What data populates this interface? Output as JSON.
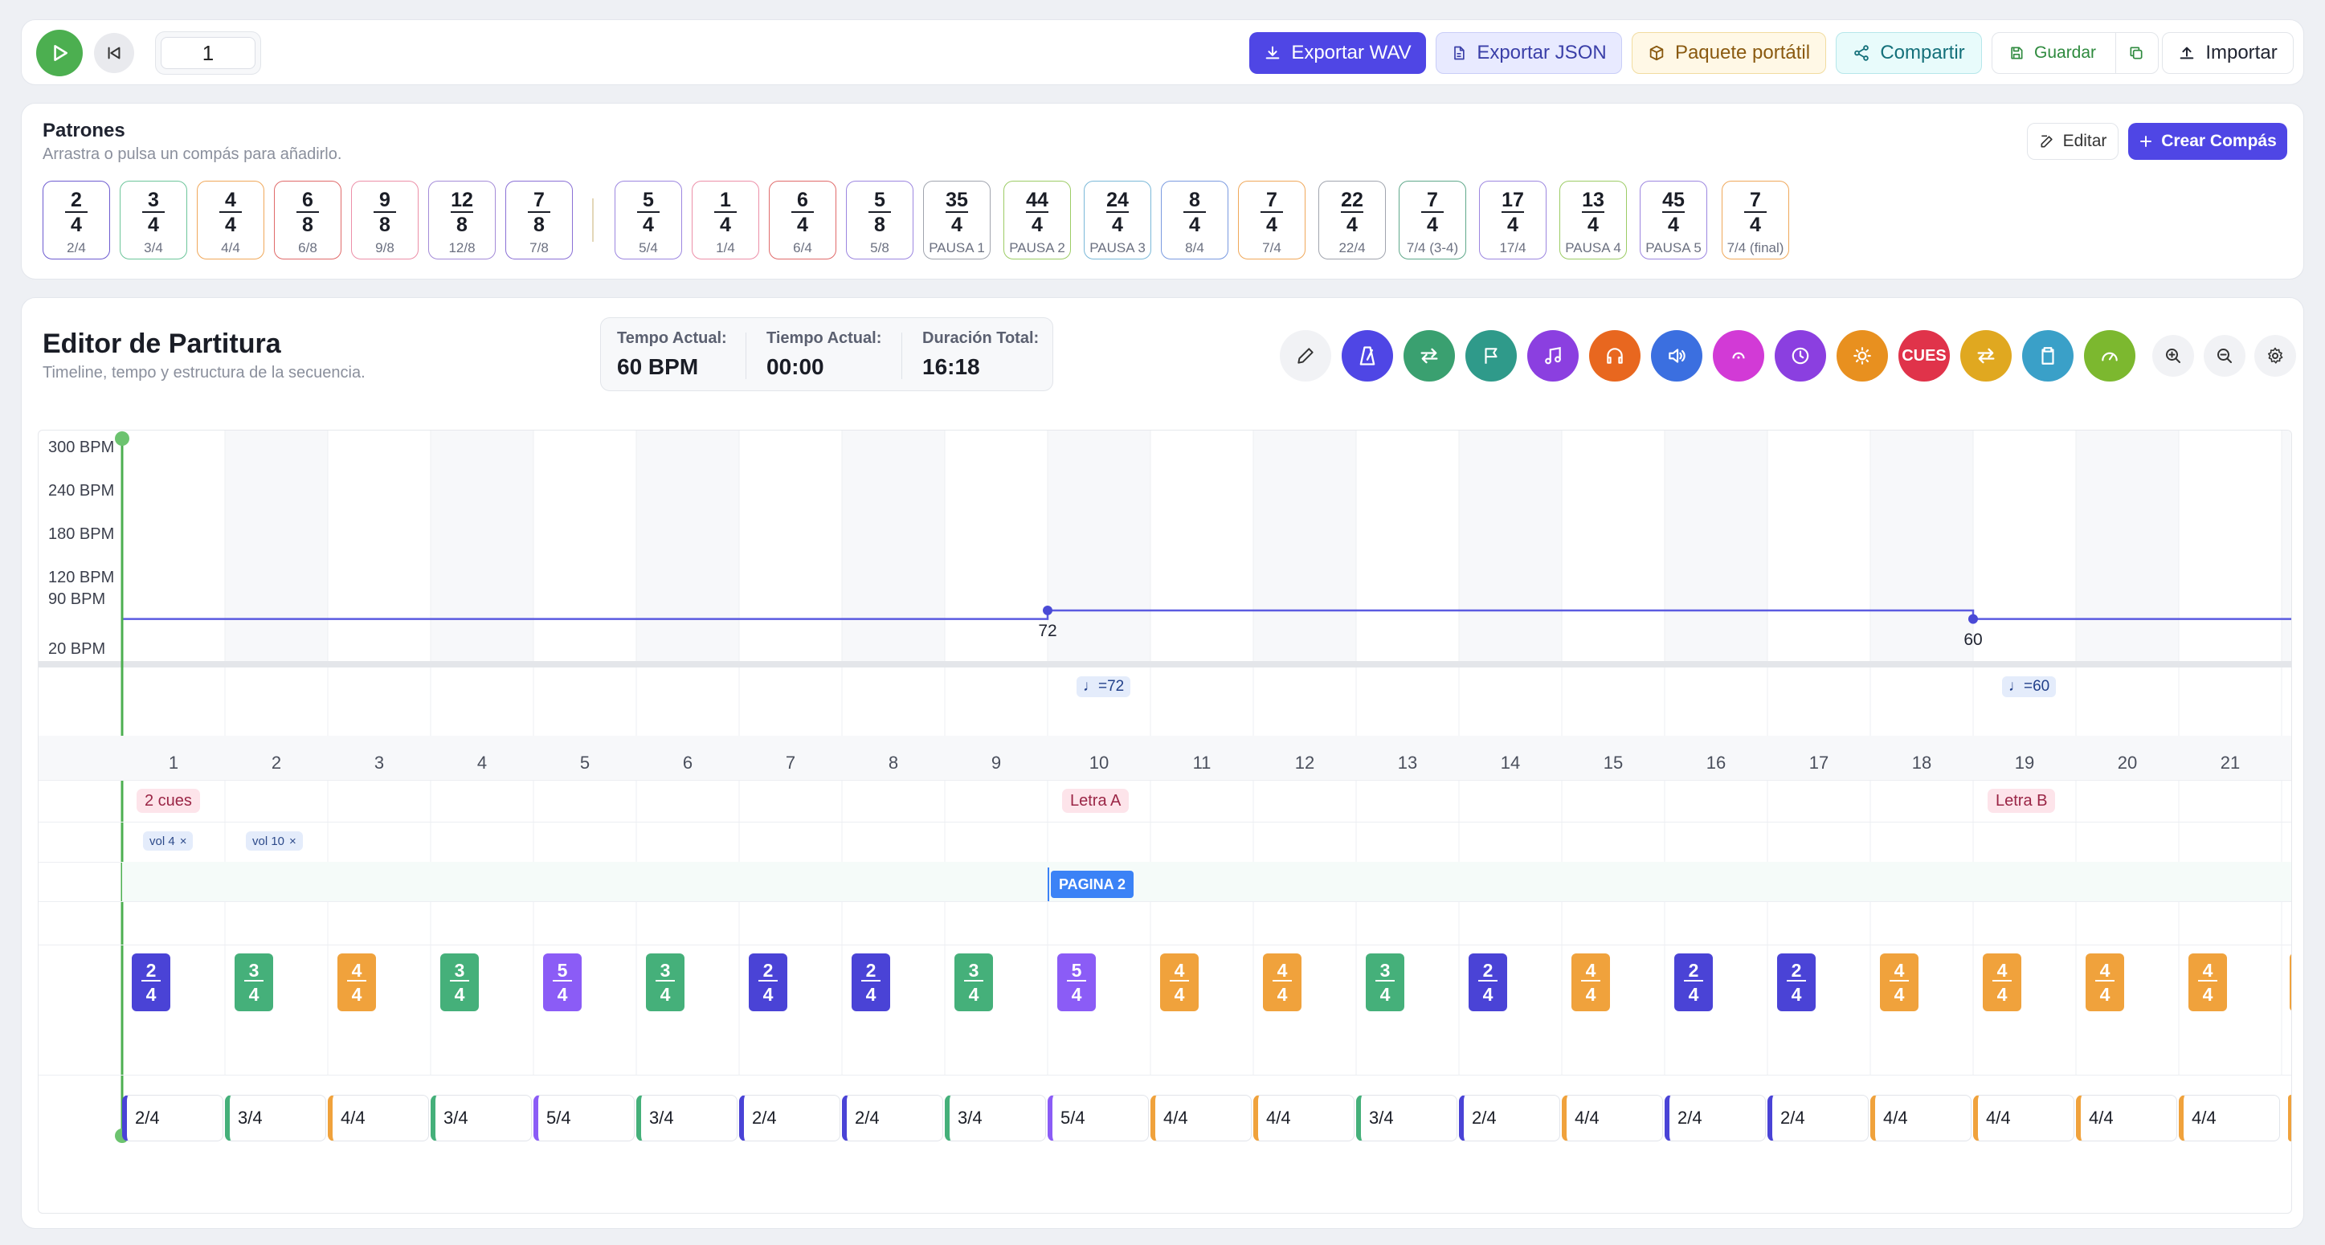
{
  "toolbar": {
    "bar_value": "1",
    "export_wav": "Exportar WAV",
    "export_json": "Exportar JSON",
    "portable": "Paquete portátil",
    "share": "Compartir",
    "save": "Guardar",
    "import": "Importar"
  },
  "patterns": {
    "title": "Patrones",
    "subtitle": "Arrastra o pulsa un compás para añadirlo.",
    "edit": "Editar",
    "create": "Crear Compás",
    "items": [
      {
        "num": "2",
        "den": "4",
        "label": "2/4",
        "color": "#6d5bd0"
      },
      {
        "num": "3",
        "den": "4",
        "label": "3/4",
        "color": "#6cc59a"
      },
      {
        "num": "4",
        "den": "4",
        "label": "4/4",
        "color": "#f0a85a"
      },
      {
        "num": "6",
        "den": "8",
        "label": "6/8",
        "color": "#e06a6a"
      },
      {
        "num": "9",
        "den": "8",
        "label": "9/8",
        "color": "#ec8fa8"
      },
      {
        "num": "12",
        "den": "8",
        "label": "12/8",
        "color": "#a48bd8"
      },
      {
        "num": "7",
        "den": "8",
        "label": "7/8",
        "color": "#8a70d6"
      },
      {
        "num": "5",
        "den": "4",
        "label": "5/4",
        "color": "#9c86e0"
      },
      {
        "num": "1",
        "den": "4",
        "label": "1/4",
        "color": "#ec8fa8"
      },
      {
        "num": "6",
        "den": "4",
        "label": "6/4",
        "color": "#e06a6a"
      },
      {
        "num": "5",
        "den": "8",
        "label": "5/8",
        "color": "#9c86e0"
      },
      {
        "num": "35",
        "den": "4",
        "label": "PAUSA 1",
        "color": "#a0a4ae"
      },
      {
        "num": "44",
        "den": "4",
        "label": "PAUSA 2",
        "color": "#9ccc65"
      },
      {
        "num": "24",
        "den": "4",
        "label": "PAUSA 3",
        "color": "#7ab8d8"
      },
      {
        "num": "8",
        "den": "4",
        "label": "8/4",
        "color": "#7a9ae0"
      },
      {
        "num": "7",
        "den": "4",
        "label": "7/4",
        "color": "#f0a85a"
      },
      {
        "num": "22",
        "den": "4",
        "label": "22/4",
        "color": "#a0a4ae"
      },
      {
        "num": "7",
        "den": "4",
        "label": "7/4 (3-4)",
        "color": "#5fa88a"
      },
      {
        "num": "17",
        "den": "4",
        "label": "17/4",
        "color": "#9c86e0"
      },
      {
        "num": "13",
        "den": "4",
        "label": "PAUSA 4",
        "color": "#9ccc65"
      },
      {
        "num": "45",
        "den": "4",
        "label": "PAUSA 5",
        "color": "#9c86e0"
      },
      {
        "num": "7",
        "den": "4",
        "label": "7/4 (final)",
        "color": "#f0a85a"
      }
    ]
  },
  "editor": {
    "title": "Editor de Partitura",
    "subtitle": "Timeline, tempo y estructura de la secuencia.",
    "stats": [
      {
        "key": "Tempo Actual:",
        "value": "60 BPM"
      },
      {
        "key": "Tiempo Actual:",
        "value": "00:00"
      },
      {
        "key": "Duración Total:",
        "value": "16:18"
      }
    ],
    "cues_label": "CUES"
  },
  "timeline": {
    "bpm_axis": [
      "300 BPM",
      "240 BPM",
      "180 BPM",
      "120 BPM",
      "90 BPM",
      "20 BPM"
    ],
    "tempo_points": [
      {
        "bar": 10,
        "bpm": 72,
        "label": "72"
      },
      {
        "bar": 19,
        "bpm": 60,
        "label": "60"
      }
    ],
    "tempo_markers": [
      {
        "bar": 10,
        "label": "♩=72"
      },
      {
        "bar": 19,
        "label": "♩=60"
      }
    ],
    "bar_numbers": [
      "1",
      "2",
      "3",
      "4",
      "5",
      "6",
      "7",
      "8",
      "9",
      "10",
      "11",
      "12",
      "13",
      "14",
      "15",
      "16",
      "17",
      "18",
      "19",
      "20",
      "21"
    ],
    "letter_tags": [
      {
        "bar": 1,
        "label": "2 cues"
      },
      {
        "bar": 10,
        "label": "Letra A"
      },
      {
        "bar": 19,
        "label": "Letra B"
      }
    ],
    "chips": [
      {
        "bar": 1,
        "label": "vol 4"
      },
      {
        "bar": 2,
        "label": "vol 10"
      }
    ],
    "chip_close": "×",
    "page_tag": {
      "bar": 9,
      "label": "PAGINA 2"
    },
    "signatures": [
      {
        "num": "2",
        "den": "4"
      },
      {
        "num": "3",
        "den": "4"
      },
      {
        "num": "4",
        "den": "4"
      },
      {
        "num": "3",
        "den": "4"
      },
      {
        "num": "5",
        "den": "4"
      },
      {
        "num": "3",
        "den": "4"
      },
      {
        "num": "2",
        "den": "4"
      },
      {
        "num": "2",
        "den": "4"
      },
      {
        "num": "3",
        "den": "4"
      },
      {
        "num": "5",
        "den": "4"
      },
      {
        "num": "4",
        "den": "4"
      },
      {
        "num": "4",
        "den": "4"
      },
      {
        "num": "3",
        "den": "4"
      },
      {
        "num": "2",
        "den": "4"
      },
      {
        "num": "4",
        "den": "4"
      },
      {
        "num": "2",
        "den": "4"
      },
      {
        "num": "2",
        "den": "4"
      },
      {
        "num": "4",
        "den": "4"
      },
      {
        "num": "4",
        "den": "4"
      },
      {
        "num": "4",
        "den": "4"
      },
      {
        "num": "4",
        "den": "4"
      }
    ],
    "sig_colors": {
      "2/4": "#4a43d6",
      "3/4": "#45b07a",
      "4/4": "#f0a23c",
      "5/4": "#8b5cf6"
    }
  }
}
